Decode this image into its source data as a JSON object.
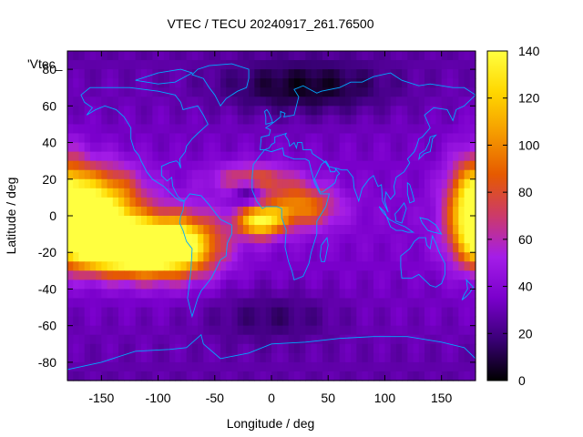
{
  "chart_data": {
    "type": "heatmap",
    "title": "VTEC / TECU 20240917_261.76500",
    "xlabel": "Longitude / deg",
    "ylabel": "Latitude / deg",
    "legend_label": "'Vtec_",
    "xlim": [
      -180,
      180
    ],
    "ylim": [
      -90,
      90
    ],
    "xticks": [
      -150,
      -100,
      -50,
      0,
      50,
      100,
      150
    ],
    "yticks": [
      -80,
      -60,
      -40,
      -20,
      0,
      20,
      40,
      60,
      80
    ],
    "colorbar": {
      "range": [
        0,
        140
      ],
      "ticks": [
        0,
        20,
        40,
        60,
        80,
        100,
        120,
        140
      ],
      "palette": [
        "#000000",
        "#3a0077",
        "#7a00cc",
        "#a41de8",
        "#cc3a6a",
        "#e65a00",
        "#f59b00",
        "#ffd700",
        "#ffff40"
      ]
    },
    "colors": {
      "coastline": "#00aaff",
      "axis": "#000000",
      "background": "#ffffff"
    },
    "vtec_hotspots": [
      {
        "lon": -150,
        "lat": 10,
        "value": 80,
        "sx": 25,
        "sy": 12
      },
      {
        "lon": -120,
        "lat": -18,
        "value": 140,
        "sx": 35,
        "sy": 10
      },
      {
        "lon": -155,
        "lat": -10,
        "value": 105,
        "sx": 22,
        "sy": 10
      },
      {
        "lon": -80,
        "lat": -15,
        "value": 70,
        "sx": 25,
        "sy": 12
      },
      {
        "lon": -10,
        "lat": -3,
        "value": 95,
        "sx": 14,
        "sy": 6
      },
      {
        "lon": 25,
        "lat": 5,
        "value": 62,
        "sx": 22,
        "sy": 8
      },
      {
        "lon": -15,
        "lat": 20,
        "value": 45,
        "sx": 25,
        "sy": 6
      },
      {
        "lon": 178,
        "lat": 5,
        "value": 90,
        "sx": 15,
        "sy": 18
      }
    ],
    "vtec_lows": [
      {
        "lon": -20,
        "lat": 12,
        "value": -35,
        "sx": 10,
        "sy": 5
      },
      {
        "lon": 30,
        "lat": 70,
        "value": -25,
        "sx": 50,
        "sy": 10
      },
      {
        "lon": 0,
        "lat": -55,
        "value": -15,
        "sx": 40,
        "sy": 10
      }
    ]
  }
}
